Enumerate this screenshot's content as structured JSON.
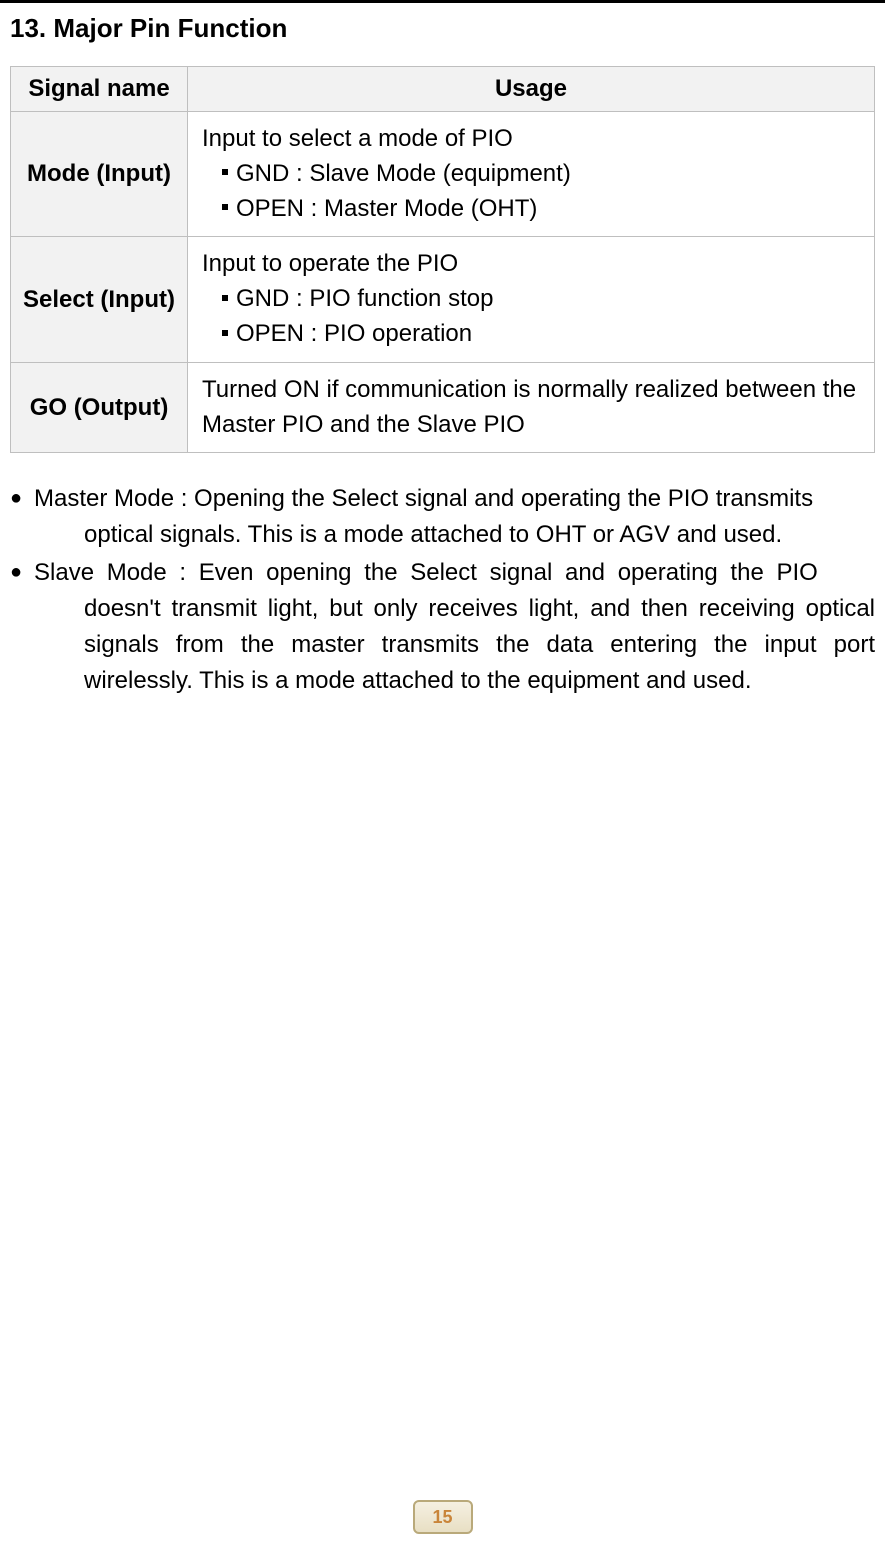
{
  "section_title": "13. Major Pin Function",
  "table": {
    "header_signal": "Signal name",
    "header_usage": "Usage",
    "rows": [
      {
        "signal": "Mode (Input)",
        "usage_main": "Input to select a mode of PIO",
        "usage_sub1": "GND : Slave Mode (equipment)",
        "usage_sub2": "OPEN : Master Mode (OHT)"
      },
      {
        "signal": "Select (Input)",
        "usage_main": "Input to operate the PIO",
        "usage_sub1": "GND : PIO function stop",
        "usage_sub2": "OPEN : PIO operation"
      },
      {
        "signal": "GO (Output)",
        "usage_main": "Turned ON if communication is normally realized between the Master PIO and the Slave PIO",
        "usage_sub1": "",
        "usage_sub2": ""
      }
    ]
  },
  "modes": {
    "master_first": "Master Mode : Opening the Select signal and operating the PIO transmits",
    "master_rest": "optical signals. This is a mode attached to OHT or AGV and used.",
    "slave_first": "Slave Mode : Even opening the Select signal and operating the PIO",
    "slave_rest": "doesn't transmit light, but only receives light, and then receiving optical signals from the master transmits the data entering the input port wirelessly. This is a mode attached to the equipment and used."
  },
  "page_number": "15",
  "colors": {
    "border": "#bfbfbf",
    "header_bg": "#f2f2f2",
    "pagenum_border": "#b9a97a",
    "pagenum_text": "#c9853a"
  }
}
